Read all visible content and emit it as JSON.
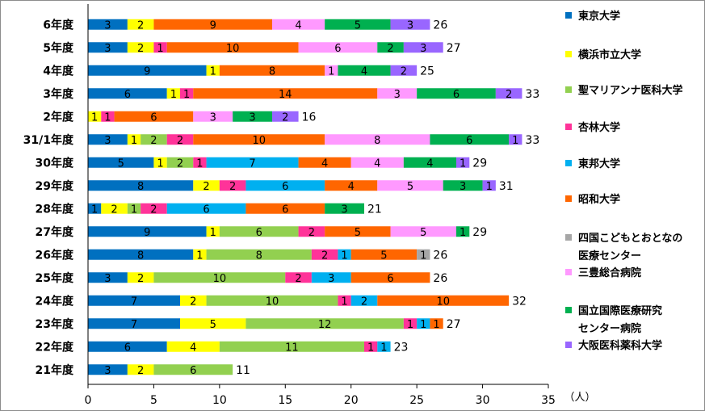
{
  "chart_data": {
    "type": "bar",
    "orientation": "horizontal",
    "stacked": true,
    "unit": "（人）",
    "xlim": [
      0,
      35
    ],
    "xticks": [
      "0",
      "5",
      "10",
      "15",
      "20",
      "25",
      "30",
      "35"
    ],
    "categories": [
      "6年度",
      "5年度",
      "4年度",
      "3年度",
      "2年度",
      "31/1年度",
      "30年度",
      "29年度",
      "28年度",
      "27年度",
      "26年度",
      "25年度",
      "24年度",
      "23年度",
      "22年度",
      "21年度"
    ],
    "totals": [
      26,
      27,
      25,
      33,
      16,
      33,
      29,
      31,
      21,
      29,
      26,
      26,
      32,
      27,
      23,
      11
    ],
    "series": [
      {
        "name": "東京大学",
        "color": "#0070C0",
        "values": [
          3,
          3,
          9,
          6,
          0,
          3,
          5,
          8,
          1,
          9,
          8,
          3,
          7,
          7,
          6,
          3
        ]
      },
      {
        "name": "横浜市立大学",
        "color": "#FFFF00",
        "values": [
          2,
          2,
          1,
          1,
          1,
          1,
          1,
          2,
          2,
          1,
          1,
          2,
          2,
          5,
          4,
          2
        ]
      },
      {
        "name": "聖マリアンナ医科大学",
        "color": "#92D050",
        "values": [
          0,
          0,
          0,
          0,
          0,
          2,
          2,
          0,
          1,
          6,
          8,
          10,
          10,
          12,
          11,
          6
        ]
      },
      {
        "name": "杏林大学",
        "color": "#FF3399",
        "values": [
          0,
          1,
          0,
          1,
          1,
          2,
          1,
          2,
          2,
          2,
          2,
          2,
          1,
          1,
          1,
          0
        ]
      },
      {
        "name": "東邦大学",
        "color": "#00B0F0",
        "values": [
          0,
          0,
          0,
          0,
          0,
          0,
          7,
          6,
          6,
          0,
          1,
          3,
          2,
          1,
          1,
          0
        ]
      },
      {
        "name": "昭和大学",
        "color": "#FF6600",
        "values": [
          9,
          10,
          8,
          14,
          6,
          10,
          4,
          4,
          6,
          5,
          5,
          6,
          10,
          1,
          0,
          0
        ]
      },
      {
        "name": "四国こどもとおとなの医療センター",
        "color": "#A6A6A6",
        "values": [
          0,
          0,
          0,
          0,
          0,
          0,
          0,
          0,
          0,
          0,
          1,
          0,
          0,
          0,
          0,
          0
        ]
      },
      {
        "name": "三豊総合病院",
        "color": "#FF99FF",
        "values": [
          4,
          6,
          1,
          3,
          3,
          8,
          4,
          5,
          0,
          5,
          0,
          0,
          0,
          0,
          0,
          0
        ]
      },
      {
        "name": "国立国際医療研究センター病院",
        "color": "#00B050",
        "values": [
          5,
          2,
          4,
          6,
          3,
          6,
          4,
          3,
          3,
          1,
          0,
          0,
          0,
          0,
          0,
          0
        ]
      },
      {
        "name": "大阪医科薬科大学",
        "color": "#9966FF",
        "values": [
          3,
          3,
          2,
          2,
          2,
          1,
          1,
          1,
          0,
          0,
          0,
          0,
          0,
          0,
          0,
          0
        ]
      }
    ],
    "legend": [
      {
        "lines": [
          "東京大学"
        ],
        "color": "#0070C0"
      },
      {
        "lines": [
          "横浜市立大学"
        ],
        "color": "#FFFF00"
      },
      {
        "lines": [
          "聖マリアンナ医科大学"
        ],
        "color": "#92D050"
      },
      {
        "lines": [
          "杏林大学"
        ],
        "color": "#FF3399"
      },
      {
        "lines": [
          "東邦大学"
        ],
        "color": "#00B0F0"
      },
      {
        "lines": [
          "昭和大学"
        ],
        "color": "#FF6600"
      },
      {
        "lines": [
          "四国こどもとおとなの",
          "医療センター"
        ],
        "color": "#A6A6A6"
      },
      {
        "lines": [
          "三豊総合病院"
        ],
        "color": "#FF99FF"
      },
      {
        "lines": [
          "国立国際医療研究",
          "センター病院"
        ],
        "color": "#00B050"
      },
      {
        "lines": [
          "大阪医科薬科大学"
        ],
        "color": "#9966FF"
      }
    ],
    "legend_position": "right"
  }
}
